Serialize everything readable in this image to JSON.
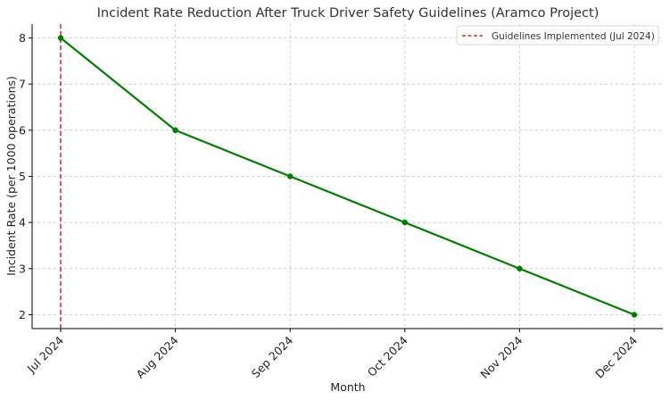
{
  "chart_data": {
    "type": "line",
    "title": "Incident Rate Reduction After Truck Driver Safety Guidelines (Aramco Project)",
    "xlabel": "Month",
    "ylabel": "Incident Rate (per 1000 operations)",
    "categories": [
      "Jul 2024",
      "Aug 2024",
      "Sep 2024",
      "Oct 2024",
      "Nov 2024",
      "Dec 2024"
    ],
    "series": [
      {
        "values": [
          8,
          6,
          5,
          4,
          3,
          2
        ],
        "color": "#008000",
        "marker": "circle"
      }
    ],
    "yticks": [
      2,
      3,
      4,
      5,
      6,
      7,
      8
    ],
    "ylim": [
      1.7,
      8.3
    ],
    "grid": true,
    "annotations": [
      {
        "type": "vline",
        "category": "Jul 2024",
        "label": "Guidelines Implemented (Jul 2024)",
        "color": "#d62728",
        "style": "dashed"
      }
    ],
    "legend": {
      "placement": "top-right",
      "entries": [
        "Guidelines Implemented (Jul 2024)"
      ]
    }
  }
}
